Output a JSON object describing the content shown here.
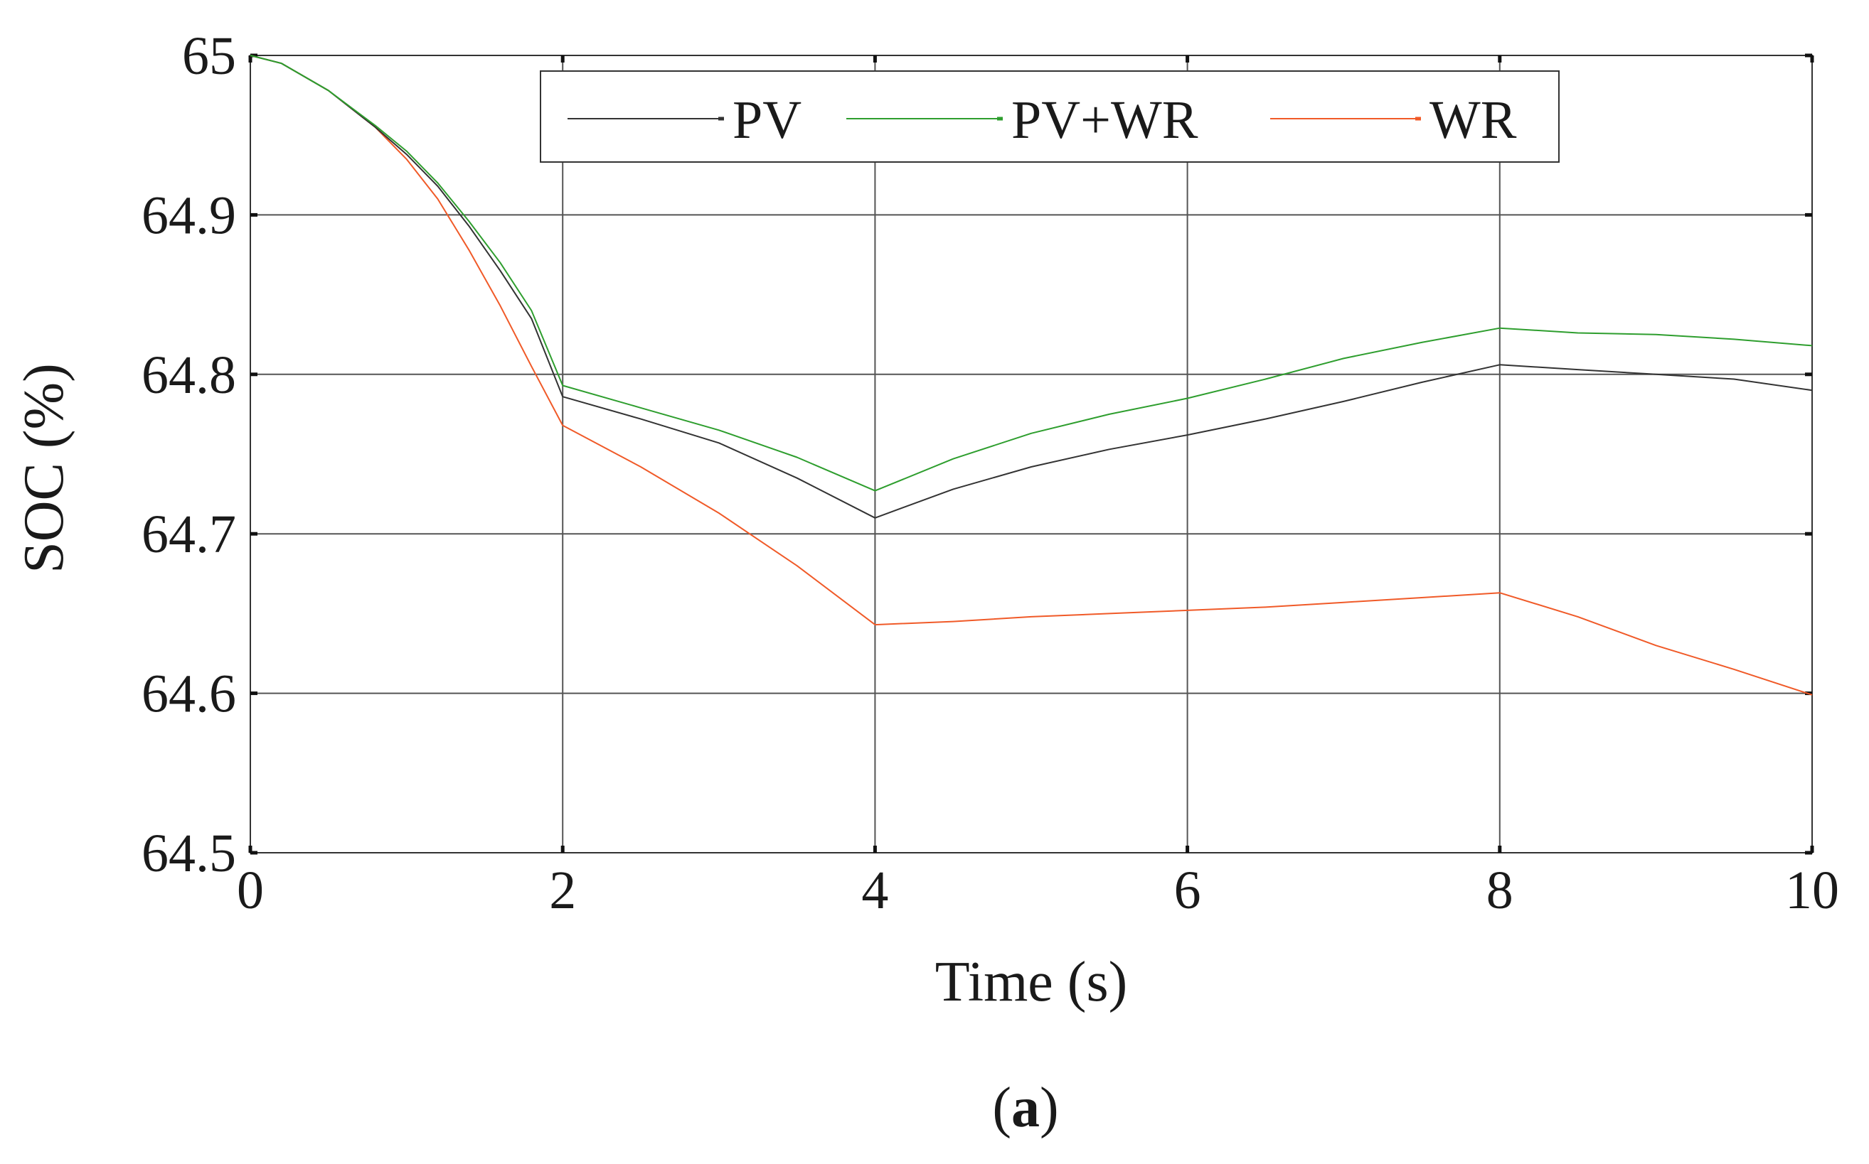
{
  "chart_data": {
    "type": "line",
    "title": "",
    "xlabel": "Time (s)",
    "ylabel": "SOC (%)",
    "xlim": [
      0,
      10
    ],
    "ylim": [
      64.5,
      65
    ],
    "xticks": [
      0,
      2,
      4,
      6,
      8,
      10
    ],
    "yticks": [
      64.5,
      64.6,
      64.7,
      64.8,
      64.9,
      65
    ],
    "xtick_labels": [
      "0",
      "2",
      "4",
      "6",
      "8",
      "10"
    ],
    "ytick_labels": [
      "64.5",
      "64.6",
      "64.7",
      "64.8",
      "64.9",
      "65"
    ],
    "grid": true,
    "legend_position": "top",
    "caption_open": "(",
    "caption": "a",
    "caption_close": ")",
    "series": [
      {
        "name": "PV",
        "color": "#333333",
        "x": [
          0,
          0.2,
          0.5,
          0.8,
          1.0,
          1.2,
          1.4,
          1.6,
          1.8,
          2.0,
          2.5,
          3.0,
          3.5,
          4.0,
          4.5,
          5.0,
          5.5,
          6.0,
          6.5,
          7.0,
          7.5,
          8.0,
          8.5,
          9.0,
          9.5,
          10.0
        ],
        "values": [
          65.0,
          64.995,
          64.978,
          64.955,
          64.938,
          64.918,
          64.893,
          64.865,
          64.835,
          64.786,
          64.772,
          64.757,
          64.735,
          64.71,
          64.728,
          64.742,
          64.753,
          64.762,
          64.772,
          64.783,
          64.795,
          64.806,
          64.803,
          64.8,
          64.797,
          64.79
        ]
      },
      {
        "name": "PV+WR",
        "color": "#2e9e2e",
        "x": [
          0,
          0.2,
          0.5,
          0.8,
          1.0,
          1.2,
          1.4,
          1.6,
          1.8,
          2.0,
          2.5,
          3.0,
          3.5,
          4.0,
          4.5,
          5.0,
          5.5,
          6.0,
          6.5,
          7.0,
          7.5,
          8.0,
          8.5,
          9.0,
          9.5,
          10.0
        ],
        "values": [
          65.0,
          64.995,
          64.978,
          64.956,
          64.94,
          64.92,
          64.896,
          64.87,
          64.84,
          64.793,
          64.779,
          64.765,
          64.748,
          64.727,
          64.747,
          64.763,
          64.775,
          64.785,
          64.797,
          64.81,
          64.82,
          64.829,
          64.826,
          64.825,
          64.822,
          64.818
        ]
      },
      {
        "name": "WR",
        "color": "#f05a28",
        "x": [
          0,
          0.2,
          0.5,
          0.8,
          1.0,
          1.2,
          1.4,
          1.6,
          1.8,
          2.0,
          2.5,
          3.0,
          3.5,
          4.0,
          4.5,
          5.0,
          5.5,
          6.0,
          6.5,
          7.0,
          7.5,
          8.0,
          8.5,
          9.0,
          9.5,
          10.0
        ],
        "values": [
          65.0,
          64.995,
          64.978,
          64.955,
          64.935,
          64.91,
          64.878,
          64.843,
          64.805,
          64.768,
          64.742,
          64.713,
          64.68,
          64.643,
          64.645,
          64.648,
          64.65,
          64.652,
          64.654,
          64.657,
          64.66,
          64.663,
          64.648,
          64.63,
          64.615,
          64.599
        ]
      }
    ]
  }
}
